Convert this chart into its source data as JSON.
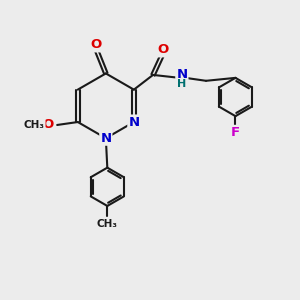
{
  "bg_color": "#ececec",
  "bond_color": "#1a1a1a",
  "bond_width": 1.5,
  "dbo": 0.055,
  "atom_colors": {
    "O": "#dd0000",
    "N": "#0000cc",
    "F": "#cc00cc",
    "H": "#007070",
    "C": "#1a1a1a"
  },
  "fs": 9.5
}
